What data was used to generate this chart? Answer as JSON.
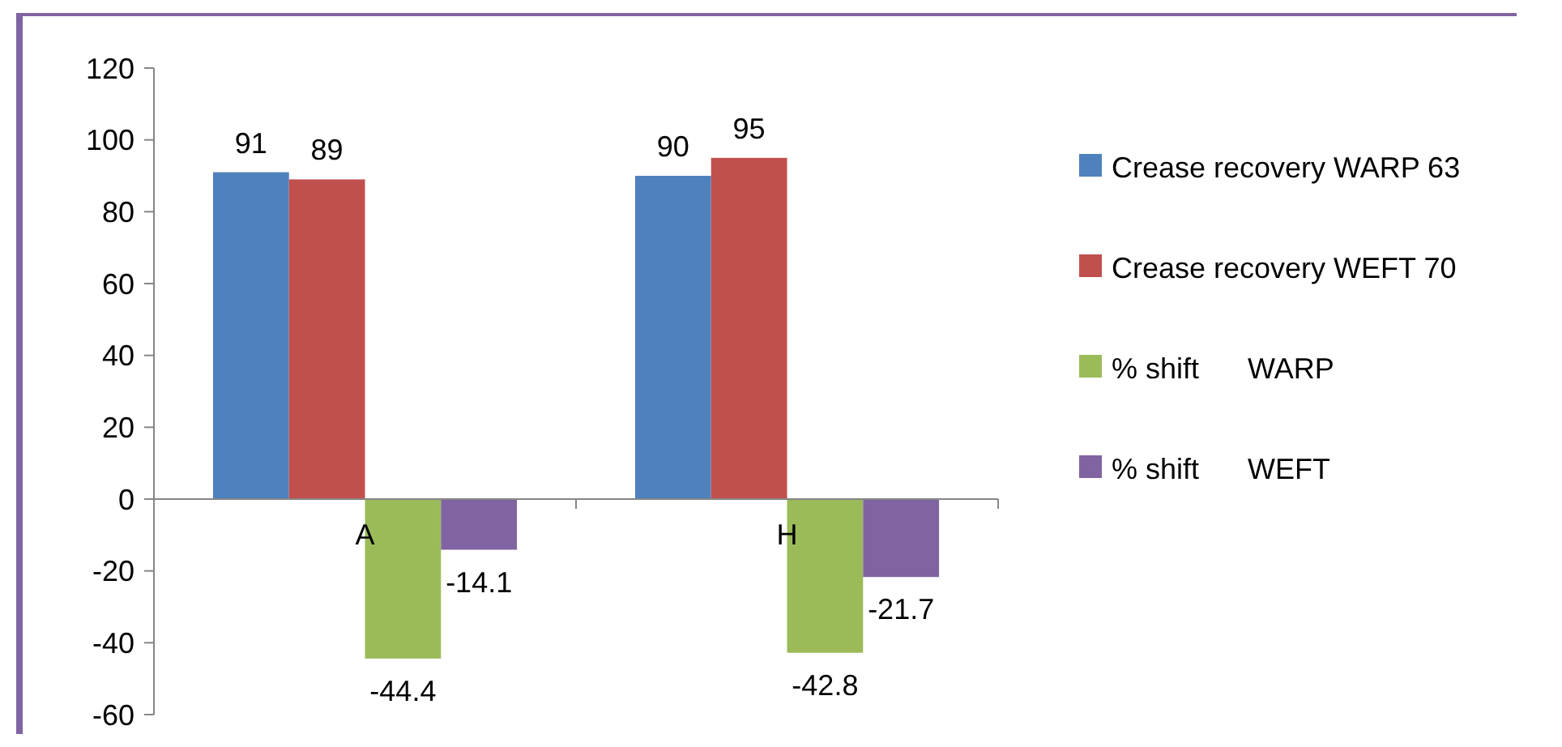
{
  "chart_data": {
    "type": "bar",
    "categories": [
      "A",
      "H"
    ],
    "series": [
      {
        "name": "Crease recovery WARP 63",
        "color": "#4f81bd",
        "values": [
          91,
          90
        ]
      },
      {
        "name": "Crease recovery WEFT 70",
        "color": "#c0504d",
        "values": [
          89,
          95
        ]
      },
      {
        "name": "% shift      WARP",
        "color": "#9bbb59",
        "values": [
          -44.4,
          -42.8
        ]
      },
      {
        "name": "% shift      WEFT",
        "color": "#8064a2",
        "values": [
          -14.1,
          -21.7
        ]
      }
    ],
    "ylim": [
      -60,
      120
    ],
    "yticks": [
      -60,
      -40,
      -20,
      0,
      20,
      40,
      60,
      80,
      100,
      120
    ],
    "grid": false,
    "legend": "right",
    "data_labels": true
  }
}
